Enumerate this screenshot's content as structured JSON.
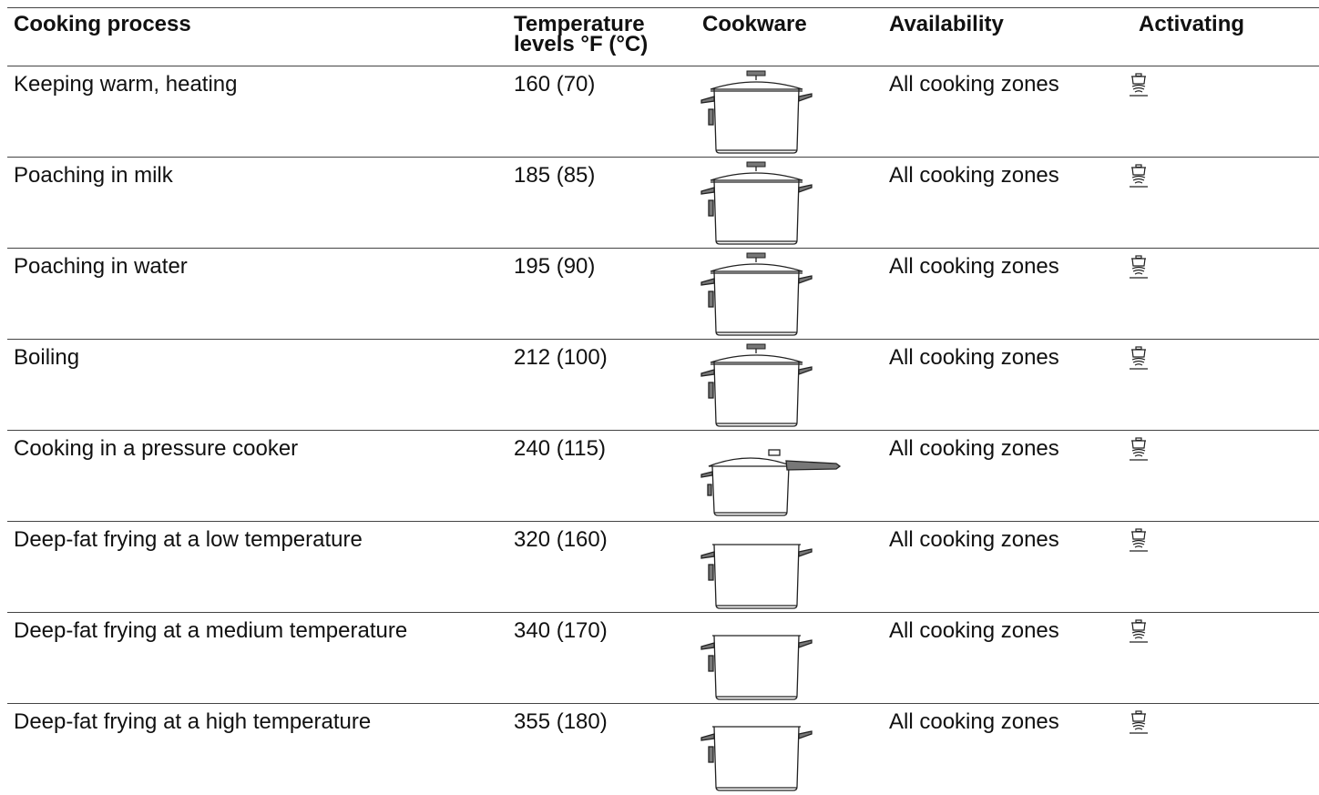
{
  "table": {
    "header": [
      "Cooking process",
      "Temperature levels °F (°C)",
      "Cookware",
      "Availability",
      "Activating"
    ],
    "rows": [
      [
        "Keeping warm, heating",
        "160 (70)",
        "All cooking zones"
      ],
      [
        "Poaching in milk",
        "185 (85)",
        "All cooking zones"
      ],
      [
        "Poaching in water",
        "195 (90)",
        "All cooking zones"
      ],
      [
        "Boiling",
        "212 (100)",
        "All cooking zones"
      ],
      [
        "Cooking in a pressure cooker",
        "240 (115)",
        "All cooking zones"
      ],
      [
        "Deep-fat frying at a low temperature",
        "320 (160)",
        "All cooking zones"
      ],
      [
        "Deep-fat frying at a medium temperature",
        "340 (170)",
        "All cooking zones"
      ],
      [
        "Deep-fat frying at a high temperature",
        "355 (180)",
        "All cooking zones"
      ]
    ]
  }
}
